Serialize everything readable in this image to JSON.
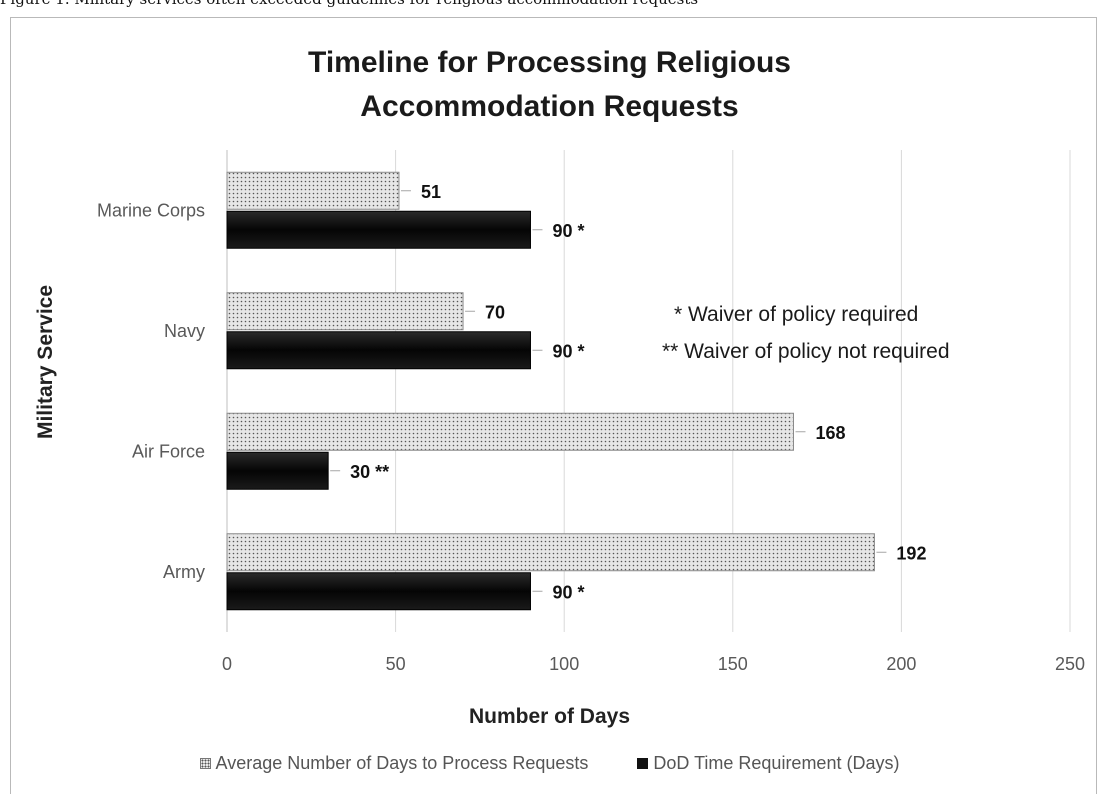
{
  "caption": "Figure 1. Military services often exceeded guidelines for religious accommodation requests",
  "chart_data": {
    "type": "bar",
    "orientation": "horizontal",
    "title": [
      "Timeline for Processing Religious",
      "Accommodation Requests"
    ],
    "xlabel": "Number of Days",
    "ylabel": "Military Service",
    "categories": [
      "Marine Corps",
      "Navy",
      "Air Force",
      "Army"
    ],
    "xlim": [
      0,
      250
    ],
    "xticks": [
      "0",
      "50",
      "100",
      "150",
      "200",
      "250"
    ],
    "grid": "vertical",
    "legend_position": "bottom",
    "series": [
      {
        "name": "Average Number of Days to Process Requests",
        "values": [
          51,
          70,
          168,
          192
        ],
        "labels": [
          "51",
          "70",
          "168",
          "192"
        ],
        "fill": "dotted"
      },
      {
        "name": "DoD Time Requirement (Days)",
        "values": [
          90,
          90,
          30,
          90
        ],
        "labels": [
          "90 *",
          "90 *",
          "30 **",
          "90 *"
        ],
        "fill": "solid"
      }
    ],
    "annotations": [
      "* Waiver of policy required",
      "** Waiver of policy not required"
    ],
    "colors": {
      "dotted_bar": "#e6e6e6",
      "dotted_dots": "#555555",
      "solid_bar": "#0d0d0d",
      "grid": "#d9d9d9",
      "axis": "#bfbfbf"
    }
  }
}
